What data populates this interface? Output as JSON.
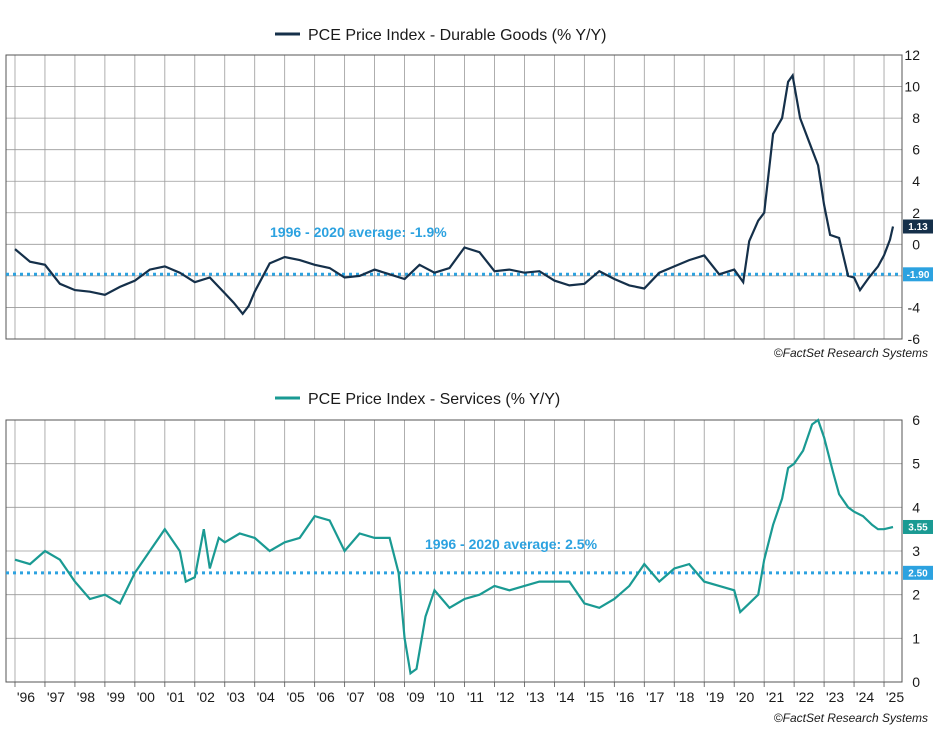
{
  "colors": {
    "durable": "#15304a",
    "services": "#1a9a93",
    "average": "#2ca2e0",
    "grid": "#9a9a9a"
  },
  "chart_data": [
    {
      "type": "line",
      "title": "PCE Price Index - Durable Goods (% Y/Y)",
      "series_name": "PCE Price Index - Durable Goods (% Y/Y)",
      "source": "©FactSet Research Systems",
      "ylim": [
        -6,
        12
      ],
      "yticks": [
        "-6",
        "-4",
        "-2",
        "0",
        "2",
        "4",
        "6",
        "8",
        "10",
        "12"
      ],
      "average": {
        "value": -1.9,
        "label": "1996 - 2020 average: -1.9%",
        "badge": "-1.90"
      },
      "last_value": {
        "value": 1.13,
        "badge": "1.13"
      },
      "grid": true,
      "points": [
        [
          1996.0,
          -0.3
        ],
        [
          1996.5,
          -1.1
        ],
        [
          1997.0,
          -1.3
        ],
        [
          1997.5,
          -2.5
        ],
        [
          1998.0,
          -2.9
        ],
        [
          1998.5,
          -3.0
        ],
        [
          1999.0,
          -3.2
        ],
        [
          1999.5,
          -2.7
        ],
        [
          2000.0,
          -2.3
        ],
        [
          2000.5,
          -1.6
        ],
        [
          2001.0,
          -1.4
        ],
        [
          2001.5,
          -1.8
        ],
        [
          2002.0,
          -2.4
        ],
        [
          2002.5,
          -2.1
        ],
        [
          2003.0,
          -3.1
        ],
        [
          2003.3,
          -3.7
        ],
        [
          2003.6,
          -4.4
        ],
        [
          2003.8,
          -3.9
        ],
        [
          2004.0,
          -3.0
        ],
        [
          2004.5,
          -1.2
        ],
        [
          2005.0,
          -0.8
        ],
        [
          2005.5,
          -1.0
        ],
        [
          2006.0,
          -1.3
        ],
        [
          2006.5,
          -1.5
        ],
        [
          2007.0,
          -2.1
        ],
        [
          2007.5,
          -2.0
        ],
        [
          2008.0,
          -1.6
        ],
        [
          2008.5,
          -1.9
        ],
        [
          2009.0,
          -2.2
        ],
        [
          2009.5,
          -1.3
        ],
        [
          2010.0,
          -1.8
        ],
        [
          2010.5,
          -1.5
        ],
        [
          2011.0,
          -0.2
        ],
        [
          2011.5,
          -0.5
        ],
        [
          2012.0,
          -1.7
        ],
        [
          2012.5,
          -1.6
        ],
        [
          2013.0,
          -1.8
        ],
        [
          2013.5,
          -1.7
        ],
        [
          2014.0,
          -2.3
        ],
        [
          2014.5,
          -2.6
        ],
        [
          2015.0,
          -2.5
        ],
        [
          2015.5,
          -1.7
        ],
        [
          2016.0,
          -2.2
        ],
        [
          2016.5,
          -2.6
        ],
        [
          2017.0,
          -2.8
        ],
        [
          2017.5,
          -1.8
        ],
        [
          2018.0,
          -1.4
        ],
        [
          2018.5,
          -1.0
        ],
        [
          2019.0,
          -0.7
        ],
        [
          2019.5,
          -1.9
        ],
        [
          2020.0,
          -1.6
        ],
        [
          2020.3,
          -2.4
        ],
        [
          2020.5,
          0.2
        ],
        [
          2020.8,
          1.5
        ],
        [
          2021.0,
          2.0
        ],
        [
          2021.3,
          7.0
        ],
        [
          2021.6,
          8.0
        ],
        [
          2021.8,
          10.3
        ],
        [
          2021.95,
          10.7
        ],
        [
          2022.2,
          8.0
        ],
        [
          2022.5,
          6.5
        ],
        [
          2022.8,
          5.0
        ],
        [
          2023.0,
          2.5
        ],
        [
          2023.2,
          0.6
        ],
        [
          2023.5,
          0.4
        ],
        [
          2023.8,
          -2.0
        ],
        [
          2024.0,
          -2.1
        ],
        [
          2024.2,
          -2.9
        ],
        [
          2024.5,
          -2.1
        ],
        [
          2024.8,
          -1.4
        ],
        [
          2025.0,
          -0.7
        ],
        [
          2025.2,
          0.3
        ],
        [
          2025.3,
          1.13
        ]
      ]
    },
    {
      "type": "line",
      "title": "PCE Price Index - Services (% Y/Y)",
      "series_name": "PCE Price Index - Services (% Y/Y)",
      "source": "©FactSet Research Systems",
      "ylim": [
        0,
        6
      ],
      "yticks": [
        "0",
        "1",
        "2",
        "3",
        "4",
        "5",
        "6"
      ],
      "average": {
        "value": 2.5,
        "label": "1996 - 2020 average: 2.5%",
        "badge": "2.50"
      },
      "last_value": {
        "value": 3.55,
        "badge": "3.55"
      },
      "xticks": [
        "96",
        "97",
        "98",
        "99",
        "00",
        "01",
        "02",
        "03",
        "04",
        "05",
        "06",
        "07",
        "08",
        "09",
        "10",
        "11",
        "12",
        "13",
        "14",
        "15",
        "16",
        "17",
        "18",
        "19",
        "20",
        "21",
        "22",
        "23",
        "24",
        "25"
      ],
      "grid": true,
      "points": [
        [
          1996.0,
          2.8
        ],
        [
          1996.5,
          2.7
        ],
        [
          1997.0,
          3.0
        ],
        [
          1997.5,
          2.8
        ],
        [
          1998.0,
          2.3
        ],
        [
          1998.5,
          1.9
        ],
        [
          1999.0,
          2.0
        ],
        [
          1999.5,
          1.8
        ],
        [
          2000.0,
          2.5
        ],
        [
          2000.5,
          3.0
        ],
        [
          2001.0,
          3.5
        ],
        [
          2001.5,
          3.0
        ],
        [
          2001.7,
          2.3
        ],
        [
          2002.0,
          2.4
        ],
        [
          2002.3,
          3.5
        ],
        [
          2002.5,
          2.6
        ],
        [
          2002.8,
          3.3
        ],
        [
          2003.0,
          3.2
        ],
        [
          2003.5,
          3.4
        ],
        [
          2004.0,
          3.3
        ],
        [
          2004.5,
          3.0
        ],
        [
          2005.0,
          3.2
        ],
        [
          2005.5,
          3.3
        ],
        [
          2006.0,
          3.8
        ],
        [
          2006.5,
          3.7
        ],
        [
          2007.0,
          3.0
        ],
        [
          2007.5,
          3.4
        ],
        [
          2008.0,
          3.3
        ],
        [
          2008.5,
          3.3
        ],
        [
          2008.8,
          2.5
        ],
        [
          2009.0,
          1.0
        ],
        [
          2009.2,
          0.2
        ],
        [
          2009.4,
          0.3
        ],
        [
          2009.7,
          1.5
        ],
        [
          2010.0,
          2.1
        ],
        [
          2010.5,
          1.7
        ],
        [
          2011.0,
          1.9
        ],
        [
          2011.5,
          2.0
        ],
        [
          2012.0,
          2.2
        ],
        [
          2012.5,
          2.1
        ],
        [
          2013.0,
          2.2
        ],
        [
          2013.5,
          2.3
        ],
        [
          2014.0,
          2.3
        ],
        [
          2014.5,
          2.3
        ],
        [
          2015.0,
          1.8
        ],
        [
          2015.5,
          1.7
        ],
        [
          2016.0,
          1.9
        ],
        [
          2016.5,
          2.2
        ],
        [
          2017.0,
          2.7
        ],
        [
          2017.5,
          2.3
        ],
        [
          2018.0,
          2.6
        ],
        [
          2018.5,
          2.7
        ],
        [
          2019.0,
          2.3
        ],
        [
          2019.5,
          2.2
        ],
        [
          2020.0,
          2.1
        ],
        [
          2020.2,
          1.6
        ],
        [
          2020.5,
          1.8
        ],
        [
          2020.8,
          2.0
        ],
        [
          2021.0,
          2.8
        ],
        [
          2021.3,
          3.6
        ],
        [
          2021.6,
          4.2
        ],
        [
          2021.8,
          4.9
        ],
        [
          2022.0,
          5.0
        ],
        [
          2022.3,
          5.3
        ],
        [
          2022.6,
          5.9
        ],
        [
          2022.8,
          6.0
        ],
        [
          2023.0,
          5.6
        ],
        [
          2023.3,
          4.8
        ],
        [
          2023.5,
          4.3
        ],
        [
          2023.8,
          4.0
        ],
        [
          2024.0,
          3.9
        ],
        [
          2024.3,
          3.8
        ],
        [
          2024.6,
          3.6
        ],
        [
          2024.8,
          3.5
        ],
        [
          2025.0,
          3.5
        ],
        [
          2025.3,
          3.55
        ]
      ]
    }
  ]
}
